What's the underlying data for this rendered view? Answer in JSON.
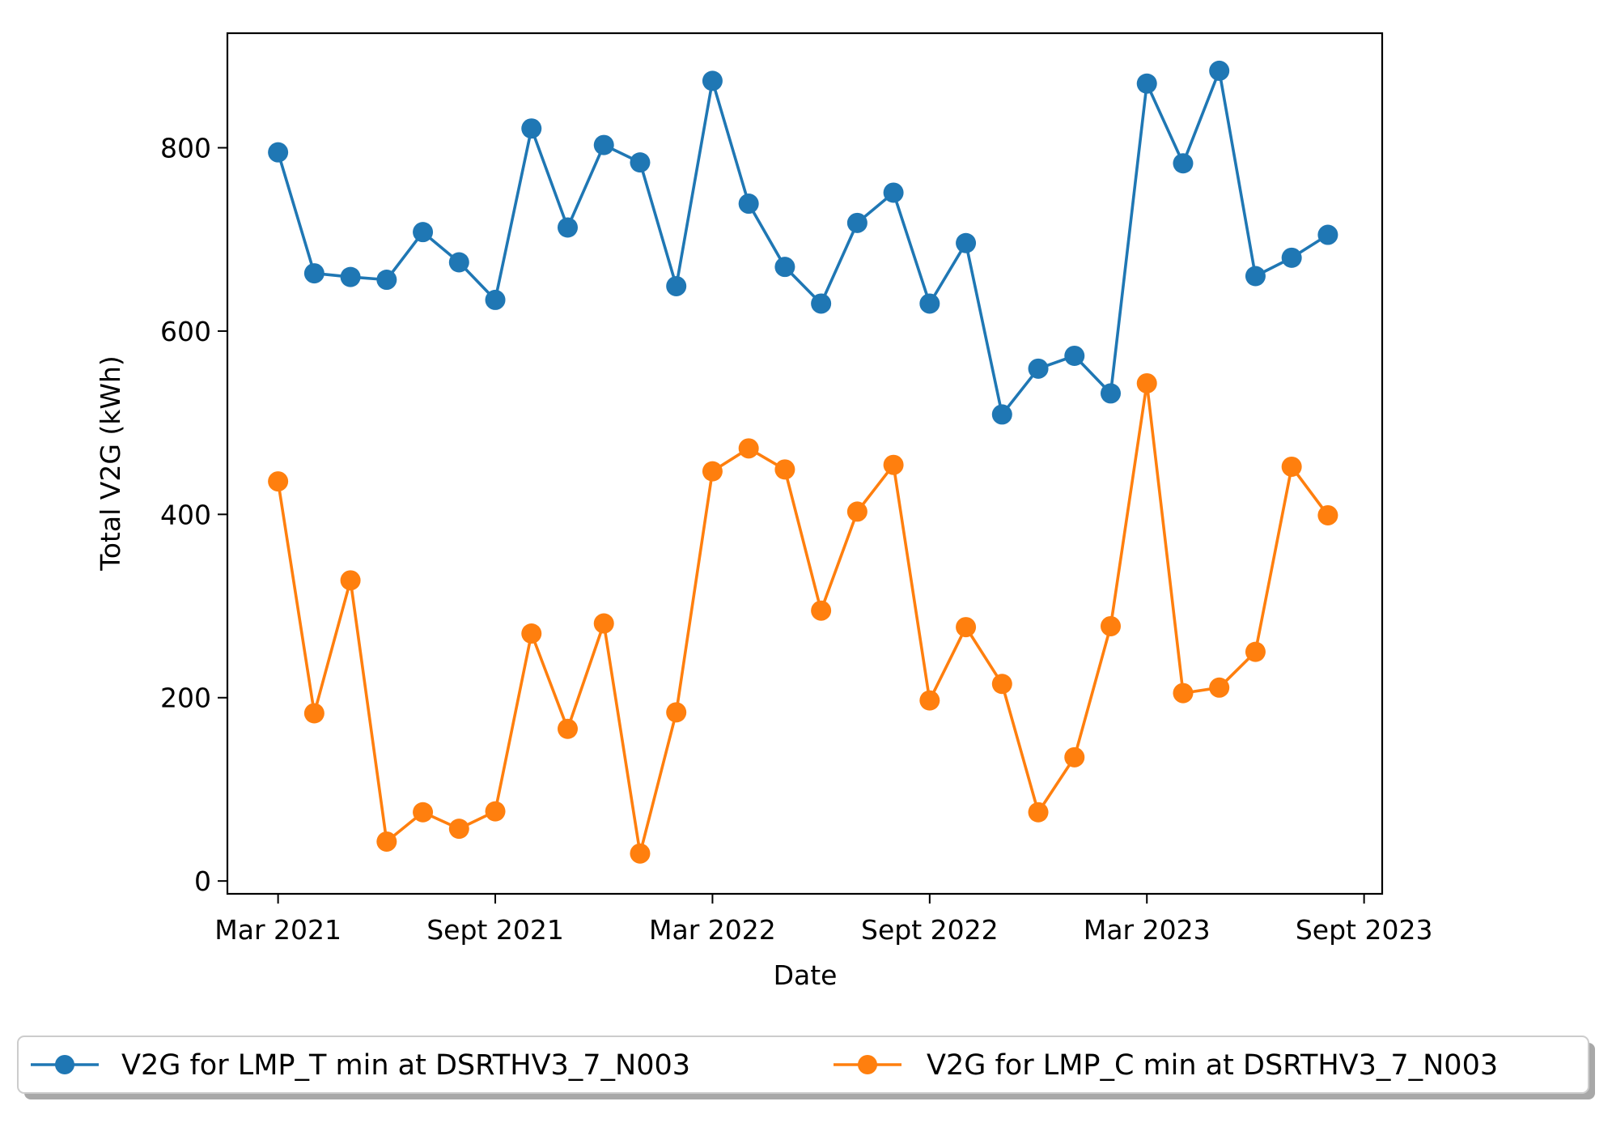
{
  "chart_data": {
    "type": "line",
    "title": "",
    "xlabel": "Date",
    "ylabel": "Total V2G (kWh)",
    "x": [
      "2021-03",
      "2021-04",
      "2021-05",
      "2021-06",
      "2021-07",
      "2021-08",
      "2021-09",
      "2021-10",
      "2021-11",
      "2021-12",
      "2022-01",
      "2022-02",
      "2022-03",
      "2022-04",
      "2022-05",
      "2022-06",
      "2022-07",
      "2022-08",
      "2022-09",
      "2022-10",
      "2022-11",
      "2022-12",
      "2023-01",
      "2023-02",
      "2023-03",
      "2023-04",
      "2023-05",
      "2023-06",
      "2023-07",
      "2023-08"
    ],
    "xticks": [
      {
        "label": "Mar 2021",
        "month_index": 0
      },
      {
        "label": "Sept 2021",
        "month_index": 6
      },
      {
        "label": "Mar 2022",
        "month_index": 12
      },
      {
        "label": "Sept 2022",
        "month_index": 18
      },
      {
        "label": "Mar 2023",
        "month_index": 24
      },
      {
        "label": "Sept 2023",
        "month_index": 30
      }
    ],
    "xlim": [
      -1.4,
      30.5
    ],
    "ylim": [
      -14,
      925
    ],
    "yticks": [
      0,
      200,
      400,
      600,
      800
    ],
    "grid": false,
    "legend_position": "bottom-center",
    "series": [
      {
        "name": "V2G for LMP_T min at DSRTHV3_7_N003",
        "color": "#1f77b4",
        "values": [
          795,
          663,
          659,
          656,
          708,
          675,
          634,
          821,
          713,
          803,
          784,
          649,
          873,
          739,
          670,
          630,
          718,
          751,
          630,
          696,
          509,
          559,
          573,
          532,
          870,
          783,
          884,
          660,
          680,
          705
        ]
      },
      {
        "name": "V2G for LMP_C min at DSRTHV3_7_N003",
        "color": "#ff7f0e",
        "values": [
          436,
          183,
          328,
          43,
          75,
          57,
          76,
          270,
          166,
          281,
          30,
          184,
          447,
          472,
          449,
          295,
          403,
          454,
          197,
          277,
          215,
          75,
          135,
          278,
          543,
          205,
          211,
          250,
          452,
          399
        ]
      }
    ]
  }
}
